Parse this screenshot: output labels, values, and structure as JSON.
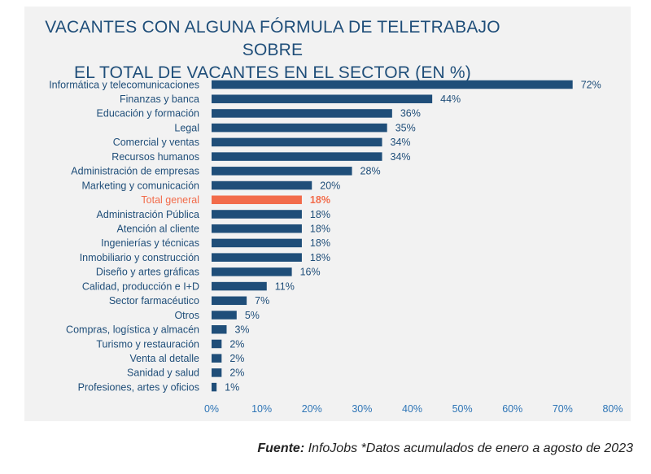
{
  "chart_data": {
    "type": "bar",
    "orientation": "horizontal",
    "title": "VACANTES CON ALGUNA FÓRMULA DE TELETRABAJO SOBRE\nEL TOTAL DE VACANTES EN EL SECTOR (EN %)",
    "categories": [
      "Informática y telecomunicaciones",
      "Finanzas y banca",
      "Educación y formación",
      "Legal",
      "Comercial y ventas",
      "Recursos humanos",
      "Administración de empresas",
      "Marketing y comunicación",
      "Total general",
      "Administración Pública",
      "Atención al cliente",
      "Ingenierías y técnicas",
      "Inmobiliario y construcción",
      "Diseño y artes gráficas",
      "Calidad, producción e I+D",
      "Sector farmacéutico",
      "Otros",
      "Compras, logística y almacén",
      "Turismo y restauración",
      "Venta al detalle",
      "Sanidad y salud",
      "Profesiones, artes y oficios"
    ],
    "values": [
      72,
      44,
      36,
      35,
      34,
      34,
      28,
      20,
      18,
      18,
      18,
      18,
      18,
      16,
      11,
      7,
      5,
      3,
      2,
      2,
      2,
      1
    ],
    "value_labels": [
      "72%",
      "44%",
      "36%",
      "35%",
      "34%",
      "34%",
      "28%",
      "20%",
      "18%",
      "18%",
      "18%",
      "18%",
      "18%",
      "16%",
      "11%",
      "7%",
      "5%",
      "3%",
      "2%",
      "2%",
      "2%",
      "1%"
    ],
    "highlight_category": "Total general",
    "xlim": [
      0,
      80
    ],
    "x_ticks": [
      "0%",
      "10%",
      "20%",
      "30%",
      "40%",
      "50%",
      "60%",
      "70%",
      "80%"
    ],
    "grid": false,
    "colors": {
      "bar": "#1f4e79",
      "highlight": "#f26b4a",
      "text": "#1f4e79",
      "tick": "#2e75b6",
      "panel": "#f2f2f2"
    }
  },
  "source": {
    "label": "Fuente:",
    "text": " InfoJobs *Datos acumulados de enero a agosto de 2023"
  }
}
